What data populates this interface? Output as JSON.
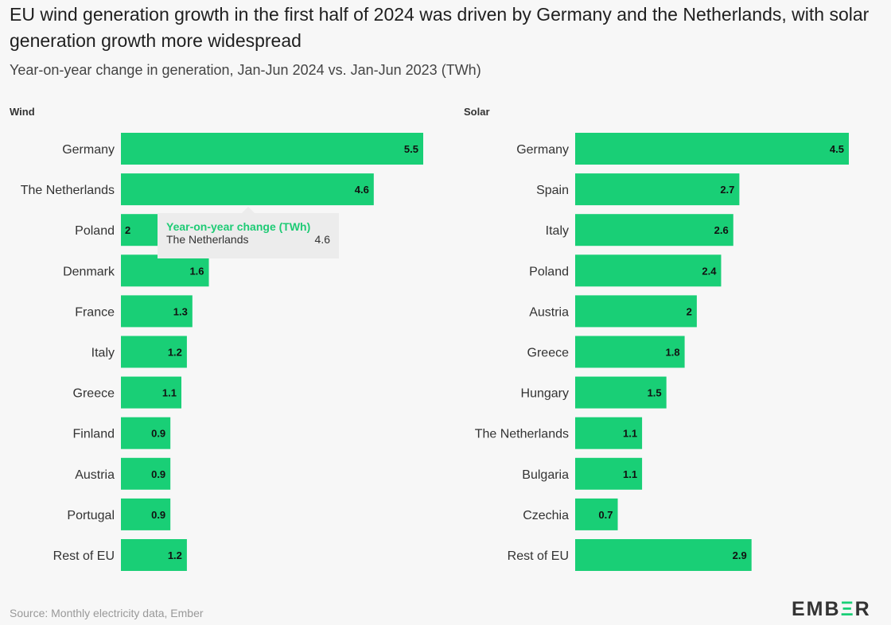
{
  "title": "EU wind generation growth in the first half of 2024 was driven by Germany and the Netherlands, with solar generation growth more widespread",
  "subtitle": "Year-on-year change in generation, Jan-Jun 2024 vs. Jan-Jun 2023 (TWh)",
  "source": "Source: Monthly electricity data, Ember",
  "logo": "EMBER",
  "colors": {
    "bar": "#19cf76",
    "tooltip_title": "#1ecb75"
  },
  "tooltip": {
    "title": "Year-on-year change (TWh)",
    "label": "The Netherlands",
    "value": "4.6"
  },
  "chart_data": [
    {
      "type": "bar",
      "orientation": "horizontal",
      "title": "Wind",
      "categories": [
        "Germany",
        "The Netherlands",
        "Poland",
        "Denmark",
        "France",
        "Italy",
        "Greece",
        "Finland",
        "Austria",
        "Portugal",
        "Rest of EU"
      ],
      "values": [
        5.5,
        4.6,
        2.0,
        1.6,
        1.3,
        1.2,
        1.1,
        0.9,
        0.9,
        0.9,
        1.2
      ],
      "xlim": [
        0,
        5.5
      ],
      "grid": false,
      "data_labels": true
    },
    {
      "type": "bar",
      "orientation": "horizontal",
      "title": "Solar",
      "categories": [
        "Germany",
        "Spain",
        "Italy",
        "Poland",
        "Austria",
        "Greece",
        "Hungary",
        "The Netherlands",
        "Bulgaria",
        "Czechia",
        "Rest of EU"
      ],
      "values": [
        4.5,
        2.7,
        2.6,
        2.4,
        2,
        1.8,
        1.5,
        1.1,
        1.1,
        0.7,
        2.9
      ],
      "xlim": [
        0,
        4.5
      ],
      "grid": false,
      "data_labels": true
    }
  ]
}
